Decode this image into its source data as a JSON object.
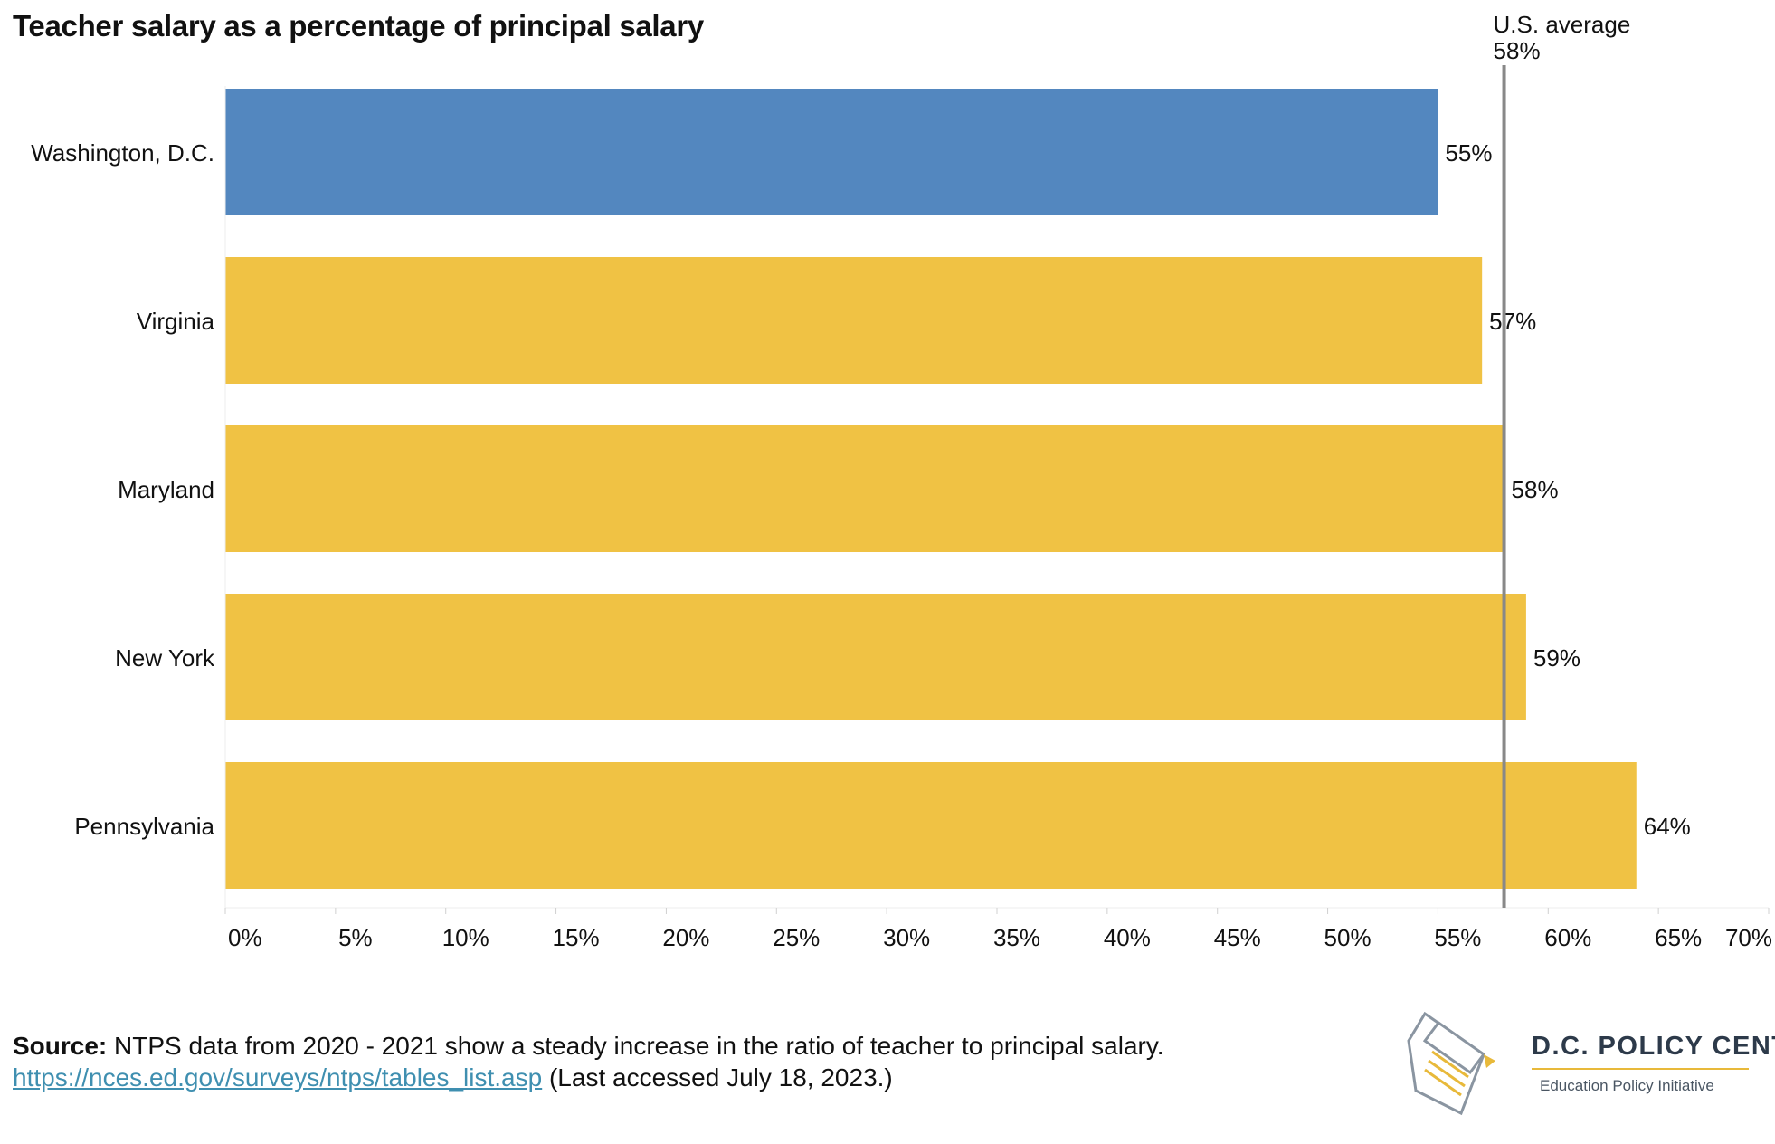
{
  "chart_data": {
    "type": "bar",
    "orientation": "horizontal",
    "title": "Teacher salary as a percentage of principal salary",
    "categories": [
      "Washington, D.C.",
      "Virginia",
      "Maryland",
      "New York",
      "Pennsylvania"
    ],
    "values": [
      55,
      57,
      58,
      59,
      64
    ],
    "value_labels": [
      "55%",
      "57%",
      "58%",
      "59%",
      "64%"
    ],
    "bar_colors": [
      "#5387bf",
      "#f0c244",
      "#f0c244",
      "#f0c244",
      "#f0c244"
    ],
    "xlim": [
      0,
      70
    ],
    "x_ticks": [
      0,
      5,
      10,
      15,
      20,
      25,
      30,
      35,
      40,
      45,
      50,
      55,
      60,
      65,
      70
    ],
    "x_tick_labels": [
      "0%",
      "5%",
      "10%",
      "15%",
      "20%",
      "25%",
      "30%",
      "35%",
      "40%",
      "45%",
      "50%",
      "55%",
      "60%",
      "65%",
      "70%"
    ],
    "reference_line": {
      "value": 58,
      "label_line1": "U.S. average",
      "label_line2": "58%",
      "color": "#888888"
    },
    "grid": false,
    "xlabel": "",
    "ylabel": ""
  },
  "footer": {
    "source_label": "Source:",
    "source_text": " NTPS data from 2020 - 2021 show a steady increase in the ratio of teacher to principal salary.",
    "link_text": "https://nces.ed.gov/surveys/ntps/tables_list.asp",
    "accessed_text": " (Last accessed July 18, 2023.)"
  },
  "logo": {
    "name": "D.C. POLICY CENTER",
    "subtitle": "Education Policy Initiative",
    "icon": "dc-map-pencil-icon"
  }
}
